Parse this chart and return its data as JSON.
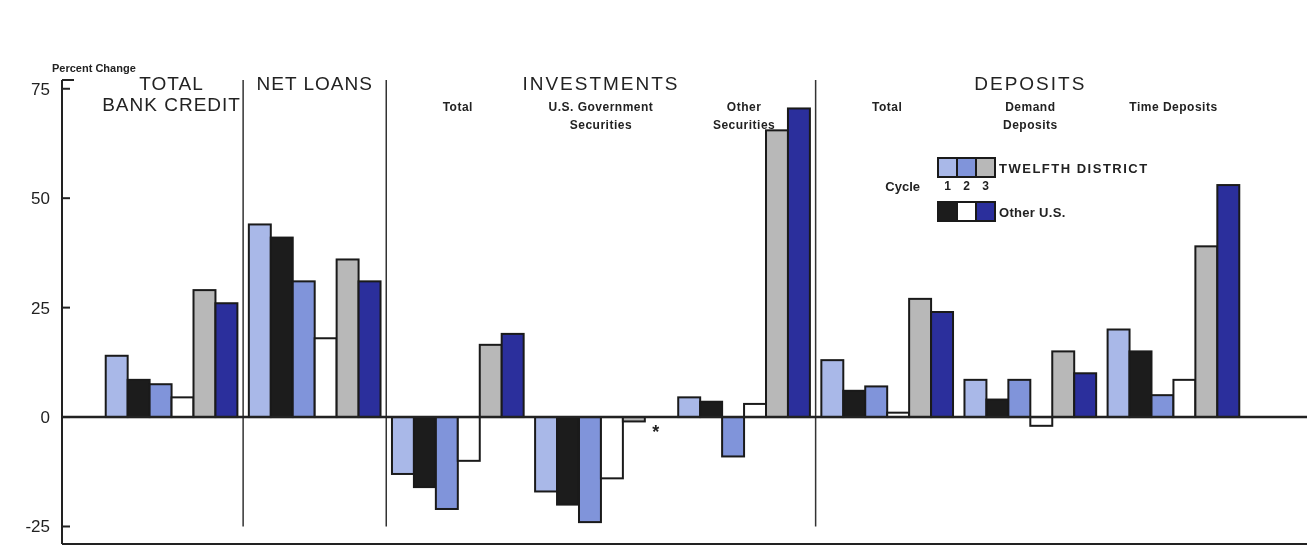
{
  "chart_data": {
    "type": "bar",
    "ylabel": "Percent Change",
    "categories": [
      "TOTAL BANK CREDIT",
      "NET LOANS",
      "Total",
      "U.S. Government Securities",
      "Other Securities",
      "Total",
      "Demand Deposits",
      "Time Deposits"
    ],
    "series": [
      {
        "color": "#a9b8e8",
        "values": [
          14,
          44,
          -13,
          -17,
          4.5,
          13,
          8.5,
          20
        ]
      },
      {
        "color": "#1c1c1c",
        "values": [
          8.5,
          41,
          -16,
          -20,
          3.5,
          6,
          4,
          15
        ]
      },
      {
        "color": "#8094da",
        "values": [
          7.5,
          31,
          -21,
          -24,
          -9,
          7,
          8.5,
          5
        ]
      },
      {
        "color": "#ffffff",
        "values": [
          4.5,
          18,
          -10,
          -14,
          3,
          1,
          -2,
          8.5
        ]
      },
      {
        "name": "TWELFTH DISTRICT",
        "color": "#b8b8b8",
        "values": [
          29,
          36,
          16.5,
          -1,
          65.5,
          27,
          15,
          39
        ]
      },
      {
        "name": "Other U.S.",
        "color": "#2b2f9c",
        "values": [
          26,
          31,
          19,
          null,
          70.5,
          24,
          10,
          53
        ]
      }
    ],
    "ylim": [
      -29,
      77
    ],
    "yticks": [
      -25,
      0,
      25,
      50,
      75
    ],
    "legend": "right",
    "legend_title": "Cycle",
    "annotations": [
      "INVESTMENTS",
      "DEPOSITS",
      "1",
      "2",
      "3",
      {
        "text": "*",
        "x": "U.S. Government Securities",
        "y": -2
      }
    ]
  }
}
